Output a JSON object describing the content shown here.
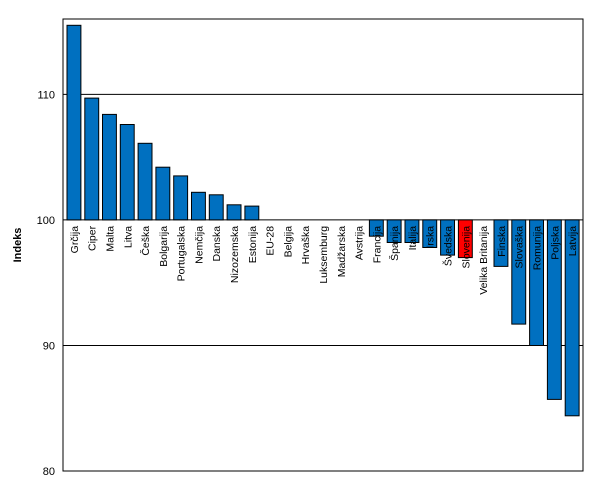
{
  "chart_data": {
    "type": "bar",
    "ylabel": "Indeks",
    "xlabel": "",
    "title": "",
    "ylim": [
      80,
      116
    ],
    "yticks": [
      80,
      90,
      100,
      110
    ],
    "baseline": 100,
    "grid": true,
    "colors": {
      "bar": "#0070c0",
      "highlight": "#ff0000",
      "outline": "#000000"
    },
    "categories": [
      "Grčija",
      "Ciper",
      "Malta",
      "Litva",
      "Češka",
      "Bolgarija",
      "Portugalska",
      "Nemčija",
      "Danska",
      "Nizozemska",
      "Estonija",
      "EU-28",
      "Belgija",
      "Hrvaška",
      "Luksemburg",
      "Madžarska",
      "Avstrija",
      "Francija",
      "Španija",
      "Italija",
      "Irska",
      "Švedska",
      "Slovenija",
      "Velika Britanija",
      "Finska",
      "Slovaška",
      "Romunija",
      "Poljska",
      "Latvija"
    ],
    "values": [
      115.5,
      109.7,
      108.4,
      107.6,
      106.1,
      104.2,
      103.5,
      102.2,
      102.0,
      101.2,
      101.1,
      100.0,
      100.0,
      100.0,
      100.0,
      100.0,
      100.0,
      98.7,
      98.2,
      98.2,
      97.8,
      97.2,
      97.0,
      100.0,
      96.3,
      91.7,
      90.0,
      85.7,
      84.4
    ],
    "highlight_index": 22
  }
}
